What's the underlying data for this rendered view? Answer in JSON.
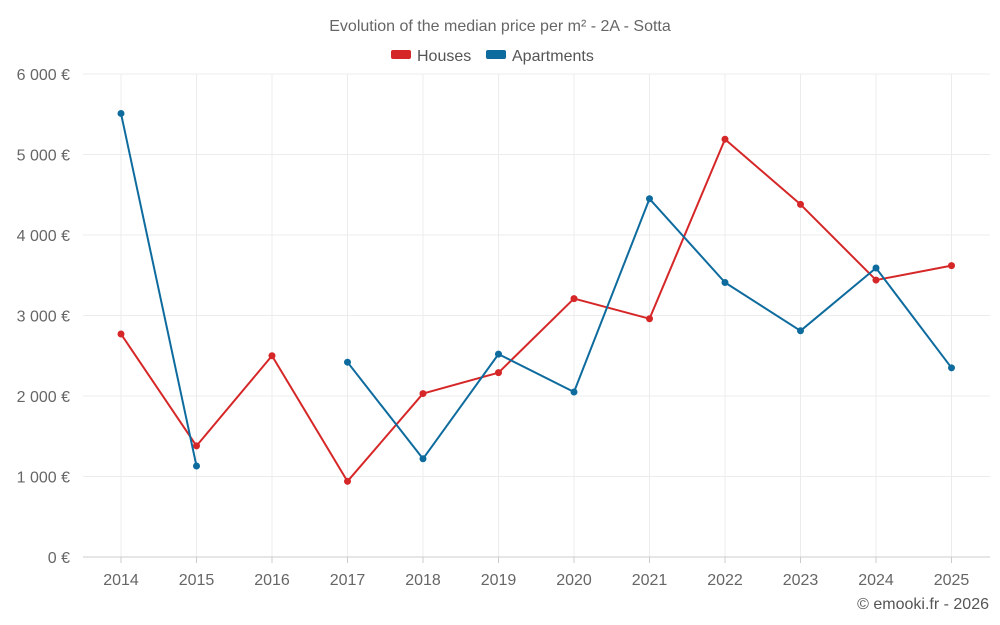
{
  "chart_data": {
    "type": "line",
    "title": "Evolution of the median price per m² - 2A - Sotta",
    "categories": [
      "2014",
      "2015",
      "2016",
      "2017",
      "2018",
      "2019",
      "2020",
      "2021",
      "2022",
      "2023",
      "2024",
      "2025"
    ],
    "y_ticks": [
      "0 €",
      "1 000 €",
      "2 000 €",
      "3 000 €",
      "4 000 €",
      "5 000 €",
      "6 000 €"
    ],
    "ylim": [
      0,
      6000
    ],
    "grid": true,
    "legend_position": "top-center",
    "series": [
      {
        "name": "Houses",
        "color": "#d62728",
        "values": [
          2770,
          1380,
          2500,
          940,
          2030,
          2290,
          3210,
          2960,
          5190,
          4380,
          3440,
          3620
        ]
      },
      {
        "name": "Apartments",
        "color": "#0e6b9e",
        "values": [
          5510,
          1130,
          null,
          2420,
          1220,
          2520,
          2050,
          4450,
          3410,
          2810,
          3590,
          2350
        ]
      }
    ],
    "credit": "© emooki.fr - 2026"
  }
}
